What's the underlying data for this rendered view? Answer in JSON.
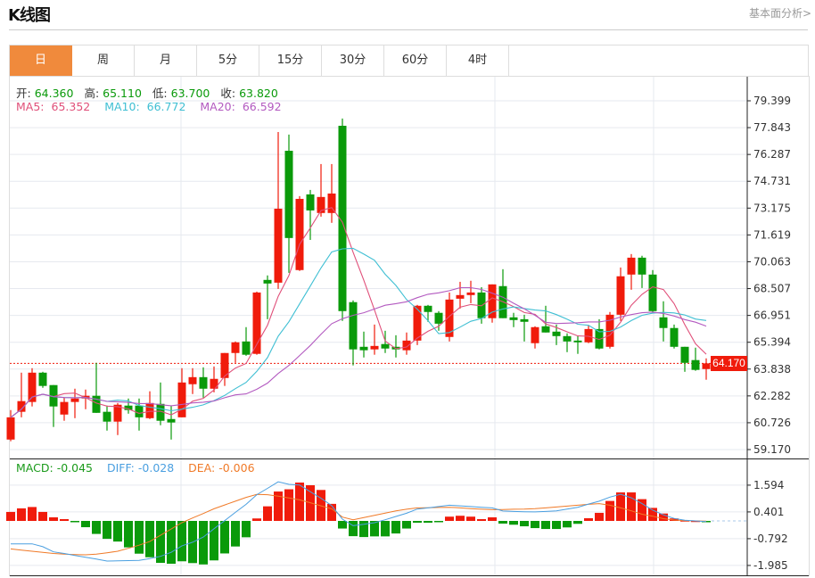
{
  "header": {
    "title": "K线图",
    "fundamental_link": "基本面分析>"
  },
  "tabs": [
    {
      "label": "日",
      "active": true
    },
    {
      "label": "周"
    },
    {
      "label": "月"
    },
    {
      "label": "5分"
    },
    {
      "label": "15分"
    },
    {
      "label": "30分"
    },
    {
      "label": "60分"
    },
    {
      "label": "4时"
    }
  ],
  "ohlc_info": {
    "open_label": "开:",
    "open": "64.360",
    "high_label": "高:",
    "high": "65.110",
    "low_label": "低:",
    "low": "63.700",
    "close_label": "收:",
    "close": "63.820"
  },
  "ma_info": {
    "ma5_label": "MA5:",
    "ma5": "65.352",
    "ma10_label": "MA10:",
    "ma10": "66.772",
    "ma20_label": "MA20:",
    "ma20": "66.592"
  },
  "macd_info": {
    "macd_label": "MACD:",
    "macd": "-0.045",
    "diff_label": "DIFF:",
    "diff": "-0.028",
    "dea_label": "DEA:",
    "dea": "-0.006"
  },
  "current_price": "64.170",
  "colors": {
    "up": "#f01b0b",
    "down": "#0a9a0a",
    "ma5": "#e0507a",
    "ma10": "#3fbfd3",
    "ma20": "#b35ac0",
    "diff": "#4a9fe0",
    "dea": "#f07a28",
    "accent": "#f08a3c"
  },
  "chart_data": [
    {
      "type": "candlestick",
      "y_ticks": [
        "79.399",
        "77.843",
        "76.287",
        "74.731",
        "73.175",
        "71.619",
        "70.063",
        "68.507",
        "66.951",
        "65.394",
        "63.838",
        "62.282",
        "60.726",
        "59.170"
      ],
      "ylim": [
        59.17,
        79.399
      ],
      "current_price": 64.17,
      "ma_periods": [
        5,
        10,
        20
      ],
      "candles": [
        [
          59.75,
          61.46,
          59.65,
          61.04
        ],
        [
          61.36,
          63.63,
          61.04,
          61.98
        ],
        [
          61.93,
          63.89,
          61.67,
          63.63
        ],
        [
          63.63,
          63.68,
          62.75,
          62.86
        ],
        [
          62.91,
          62.91,
          60.48,
          61.67
        ],
        [
          61.2,
          62.18,
          60.84,
          61.93
        ],
        [
          61.93,
          62.7,
          60.99,
          62.13
        ],
        [
          62.13,
          62.65,
          61.51,
          62.29
        ],
        [
          62.29,
          64.2,
          61.3,
          61.3
        ],
        [
          61.36,
          61.72,
          60.27,
          60.79
        ],
        [
          60.79,
          61.87,
          60.01,
          61.77
        ],
        [
          61.72,
          62.13,
          61.25,
          61.46
        ],
        [
          61.72,
          62.13,
          60.27,
          61.04
        ],
        [
          60.99,
          62.55,
          60.94,
          61.87
        ],
        [
          61.82,
          63.06,
          60.58,
          60.84
        ],
        [
          60.94,
          61.72,
          59.75,
          60.74
        ],
        [
          61.04,
          63.89,
          61.04,
          63.06
        ],
        [
          62.96,
          63.89,
          62.39,
          63.37
        ],
        [
          63.37,
          63.94,
          62.18,
          62.7
        ],
        [
          62.7,
          63.99,
          62.49,
          63.27
        ],
        [
          63.32,
          64.77,
          62.86,
          64.77
        ],
        [
          64.77,
          65.44,
          64.2,
          65.39
        ],
        [
          65.44,
          66.27,
          64.61,
          64.67
        ],
        [
          64.72,
          68.33,
          64.67,
          68.28
        ],
        [
          69.01,
          69.27,
          66.73,
          68.8
        ],
        [
          68.85,
          77.59,
          68.49,
          73.14
        ],
        [
          76.5,
          77.44,
          69.42,
          71.44
        ],
        [
          69.58,
          73.87,
          69.53,
          73.71
        ],
        [
          73.97,
          74.23,
          71.33,
          73.04
        ],
        [
          72.89,
          75.73,
          72.68,
          73.82
        ],
        [
          72.89,
          75.73,
          72.32,
          74.02
        ],
        [
          77.95,
          78.37,
          66.63,
          67.2
        ],
        [
          67.72,
          67.82,
          64.05,
          64.98
        ],
        [
          65.13,
          66.01,
          64.51,
          64.93
        ],
        [
          64.98,
          66.42,
          64.67,
          65.18
        ],
        [
          65.29,
          66.06,
          64.77,
          65.03
        ],
        [
          65.13,
          65.8,
          64.51,
          64.98
        ],
        [
          64.93,
          65.96,
          64.67,
          65.49
        ],
        [
          65.49,
          67.56,
          65.23,
          67.51
        ],
        [
          67.51,
          67.56,
          66.58,
          67.15
        ],
        [
          67.1,
          67.2,
          66.06,
          66.47
        ],
        [
          65.7,
          68.28,
          65.44,
          67.87
        ],
        [
          67.92,
          68.9,
          67.35,
          68.13
        ],
        [
          68.13,
          68.96,
          67.66,
          68.28
        ],
        [
          68.28,
          68.59,
          66.47,
          66.79
        ],
        [
          66.79,
          68.75,
          66.53,
          68.75
        ],
        [
          68.65,
          69.63,
          66.79,
          66.79
        ],
        [
          66.84,
          67.1,
          66.27,
          66.68
        ],
        [
          66.73,
          66.99,
          65.44,
          66.58
        ],
        [
          65.34,
          66.32,
          65.03,
          66.27
        ],
        [
          66.32,
          67.51,
          65.96,
          65.96
        ],
        [
          66.01,
          66.42,
          65.23,
          65.75
        ],
        [
          65.75,
          65.91,
          64.82,
          65.44
        ],
        [
          65.49,
          65.75,
          64.72,
          65.39
        ],
        [
          65.39,
          66.37,
          65.34,
          66.16
        ],
        [
          66.16,
          66.73,
          64.98,
          65.03
        ],
        [
          65.13,
          67.15,
          65.03,
          66.99
        ],
        [
          66.99,
          69.73,
          66.63,
          69.22
        ],
        [
          69.32,
          70.51,
          68.44,
          70.3
        ],
        [
          70.3,
          70.41,
          68.54,
          69.32
        ],
        [
          69.32,
          69.58,
          67.1,
          67.2
        ],
        [
          66.84,
          67.77,
          65.44,
          66.22
        ],
        [
          66.22,
          66.42,
          65.03,
          65.13
        ],
        [
          65.13,
          65.13,
          63.68,
          64.2
        ],
        [
          64.36,
          65.08,
          63.74,
          63.79
        ],
        [
          63.84,
          64.46,
          63.22,
          64.17
        ]
      ]
    },
    {
      "type": "bar+line",
      "y_ticks": [
        "1.594",
        "0.401",
        "-0.792",
        "-1.985"
      ],
      "ylim": [
        -2.2,
        2.0
      ],
      "macd": [
        0.4,
        0.56,
        0.62,
        0.4,
        0.16,
        0.08,
        -0.03,
        -0.28,
        -0.58,
        -0.8,
        -0.92,
        -1.18,
        -1.46,
        -1.62,
        -1.87,
        -1.91,
        -1.8,
        -1.88,
        -1.94,
        -1.76,
        -1.45,
        -1.14,
        -0.73,
        0.11,
        0.65,
        1.31,
        1.41,
        1.71,
        1.59,
        1.38,
        0.76,
        -0.34,
        -0.68,
        -0.72,
        -0.69,
        -0.69,
        -0.56,
        -0.34,
        -0.08,
        -0.08,
        -0.03,
        0.19,
        0.23,
        0.19,
        0.08,
        0.16,
        -0.12,
        -0.17,
        -0.24,
        -0.32,
        -0.36,
        -0.36,
        -0.29,
        -0.13,
        0.12,
        0.36,
        0.89,
        1.27,
        1.27,
        0.97,
        0.58,
        0.33,
        0.11,
        0.03,
        0.01,
        -0.045
      ],
      "diff": [
        -1.02,
        -1.02,
        -1.02,
        -1.15,
        -1.38,
        -1.45,
        -1.54,
        -1.62,
        -1.7,
        -1.79,
        -1.78,
        -1.77,
        -1.76,
        -1.68,
        -1.58,
        -1.4,
        -1.11,
        -0.95,
        -0.72,
        -0.35,
        0.01,
        0.38,
        0.74,
        1.17,
        1.45,
        1.74,
        1.63,
        1.6,
        1.3,
        1.01,
        0.68,
        0.08,
        -0.21,
        -0.15,
        -0.08,
        0.05,
        0.2,
        0.34,
        0.53,
        0.58,
        0.64,
        0.7,
        0.67,
        0.64,
        0.61,
        0.58,
        0.44,
        0.42,
        0.41,
        0.4,
        0.42,
        0.45,
        0.53,
        0.61,
        0.75,
        0.88,
        1.06,
        1.19,
        1.03,
        0.77,
        0.48,
        0.27,
        0.11,
        0.03,
        0.0,
        -0.028
      ],
      "dea": [
        -1.25,
        -1.3,
        -1.35,
        -1.4,
        -1.45,
        -1.48,
        -1.5,
        -1.51,
        -1.48,
        -1.42,
        -1.35,
        -1.22,
        -1.08,
        -0.92,
        -0.64,
        -0.36,
        -0.08,
        0.13,
        0.33,
        0.54,
        0.71,
        0.88,
        1.05,
        1.18,
        1.17,
        1.1,
        1.02,
        0.94,
        0.81,
        0.67,
        0.54,
        0.17,
        0.05,
        0.15,
        0.25,
        0.35,
        0.45,
        0.52,
        0.58,
        0.59,
        0.6,
        0.61,
        0.58,
        0.55,
        0.52,
        0.5,
        0.51,
        0.52,
        0.53,
        0.55,
        0.58,
        0.62,
        0.66,
        0.7,
        0.74,
        0.77,
        0.7,
        0.58,
        0.45,
        0.3,
        0.21,
        0.1,
        0.04,
        0.01,
        0.0,
        -0.006
      ]
    }
  ]
}
